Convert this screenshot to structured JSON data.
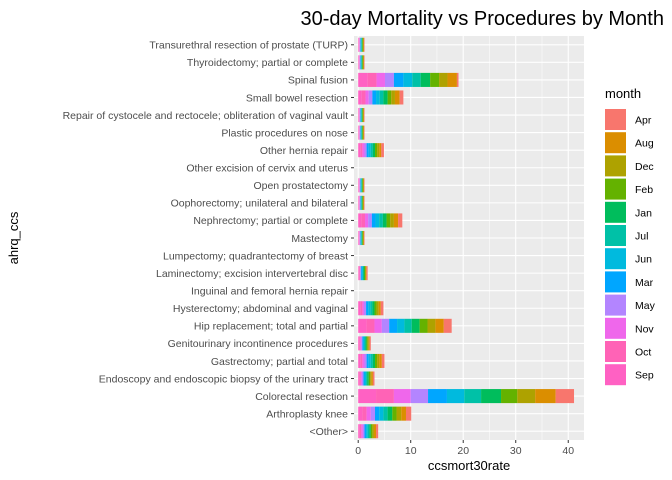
{
  "chart_data": {
    "type": "bar",
    "orientation": "horizontal",
    "stacked": true,
    "title": "30-day Mortality vs Procedures by Month",
    "xlabel": "ccsmort30rate",
    "ylabel": "ahrq_ccs",
    "xlim": [
      -0.8,
      43
    ],
    "xticks": [
      0,
      10,
      20,
      30,
      40
    ],
    "grid": true,
    "legend_title": "month",
    "legend_position": "right",
    "categories": [
      "Transurethral resection of prostate (TURP)",
      "Thyroidectomy; partial or complete",
      "Spinal fusion",
      "Small bowel resection",
      "Repair of cystocele and rectocele; obliteration of vaginal vault",
      "Plastic procedures on nose",
      "Other hernia repair",
      "Other excision of cervix and uterus",
      "Open prostatectomy",
      "Oophorectomy; unilateral and bilateral",
      "Nephrectomy; partial or complete",
      "Mastectomy",
      "Lumpectomy; quadrantectomy of breast",
      "Laminectomy; excision intervertebral disc",
      "Inguinal and femoral hernia repair",
      "Hysterectomy; abdominal and vaginal",
      "Hip replacement; total and partial",
      "Genitourinary incontinence procedures",
      "Gastrectomy; partial and total",
      "Endoscopy and endoscopic biopsy of the urinary tract",
      "Colorectal resection",
      "Arthroplasty knee",
      "<Other>"
    ],
    "series": [
      {
        "name": "Apr",
        "color": "#F8766D",
        "values": [
          0.1,
          0.1,
          0.3,
          0.7,
          0.1,
          0.1,
          0.5,
          0,
          0.1,
          0.1,
          0.8,
          0.1,
          0,
          0.2,
          0,
          0.5,
          1.5,
          0.2,
          0.5,
          0.3,
          3.5,
          1.0,
          0.4
        ]
      },
      {
        "name": "Aug",
        "color": "#DB8E00",
        "values": [
          0.1,
          0.1,
          1.8,
          0.9,
          0.1,
          0.1,
          0.4,
          0,
          0.1,
          0.1,
          0.8,
          0.1,
          0,
          0.1,
          0,
          0.4,
          1.6,
          0.2,
          0.5,
          0.3,
          3.9,
          0.9,
          0.4
        ]
      },
      {
        "name": "Dec",
        "color": "#AEA200",
        "values": [
          0.1,
          0.1,
          1.6,
          0.7,
          0.1,
          0.1,
          0.4,
          0,
          0.1,
          0.1,
          0.7,
          0.1,
          0,
          0.2,
          0,
          0.4,
          1.5,
          0.2,
          0.4,
          0.2,
          3.4,
          0.9,
          0.3
        ]
      },
      {
        "name": "Feb",
        "color": "#64B200",
        "values": [
          0.1,
          0.1,
          1.7,
          0.7,
          0.1,
          0.1,
          0.4,
          0,
          0.1,
          0.1,
          0.7,
          0.1,
          0,
          0.1,
          0,
          0.4,
          1.5,
          0.2,
          0.4,
          0.3,
          3.1,
          0.8,
          0.3
        ]
      },
      {
        "name": "Jan",
        "color": "#00BD5C",
        "values": [
          0.1,
          0.1,
          1.8,
          0.8,
          0.1,
          0.1,
          0.4,
          0,
          0.1,
          0.1,
          0.7,
          0.1,
          0,
          0.2,
          0,
          0.4,
          1.5,
          0.2,
          0.4,
          0.3,
          3.8,
          0.9,
          0.3
        ]
      },
      {
        "name": "Jul",
        "color": "#00C1A7",
        "values": [
          0.1,
          0.1,
          1.6,
          0.7,
          0.1,
          0.1,
          0.4,
          0,
          0.1,
          0.1,
          0.7,
          0.1,
          0,
          0.1,
          0,
          0.4,
          1.4,
          0.2,
          0.4,
          0.2,
          3.2,
          0.8,
          0.3
        ]
      },
      {
        "name": "Jun",
        "color": "#00BADE",
        "values": [
          0.1,
          0.1,
          1.7,
          0.7,
          0.1,
          0.1,
          0.4,
          0,
          0.1,
          0.1,
          0.7,
          0.1,
          0,
          0.2,
          0,
          0.4,
          1.4,
          0.2,
          0.4,
          0.3,
          3.3,
          0.8,
          0.3
        ]
      },
      {
        "name": "Mar",
        "color": "#00A6FF",
        "values": [
          0.1,
          0.1,
          1.8,
          0.7,
          0.1,
          0.1,
          0.4,
          0,
          0.1,
          0.1,
          0.7,
          0.1,
          0,
          0.2,
          0,
          0.4,
          1.5,
          0.2,
          0.4,
          0.2,
          3.6,
          0.8,
          0.3
        ]
      },
      {
        "name": "May",
        "color": "#B385FF",
        "values": [
          0.1,
          0.1,
          1.7,
          0.7,
          0.1,
          0.1,
          0.4,
          0,
          0.1,
          0.1,
          0.7,
          0.1,
          0,
          0.1,
          0,
          0.4,
          1.4,
          0.2,
          0.4,
          0.3,
          3.3,
          0.8,
          0.3
        ]
      },
      {
        "name": "Nov",
        "color": "#EF67EB",
        "values": [
          0.1,
          0.1,
          1.6,
          0.6,
          0.1,
          0.1,
          0.4,
          0,
          0.1,
          0.1,
          0.6,
          0.1,
          0,
          0.1,
          0,
          0.3,
          1.4,
          0.2,
          0.4,
          0.2,
          3.2,
          0.8,
          0.3
        ]
      },
      {
        "name": "Oct",
        "color": "#FF63B6",
        "values": [
          0.1,
          0.1,
          1.7,
          0.7,
          0.1,
          0.1,
          0.4,
          0,
          0.1,
          0.1,
          0.7,
          0.1,
          0,
          0.2,
          0,
          0.4,
          1.5,
          0.2,
          0.4,
          0.3,
          3.4,
          0.8,
          0.3
        ]
      },
      {
        "name": "Sep",
        "color": "#FF61C3",
        "values": [
          0.1,
          0.1,
          1.8,
          0.7,
          0.1,
          0.1,
          0.4,
          0,
          0.1,
          0.1,
          0.6,
          0.1,
          0,
          0.1,
          0,
          0.4,
          1.6,
          0.2,
          0.4,
          0.2,
          3.4,
          0.8,
          0.3
        ]
      }
    ]
  }
}
